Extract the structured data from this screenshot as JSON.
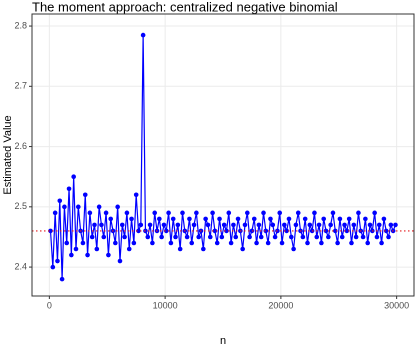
{
  "chart_data": {
    "type": "line",
    "title": "The moment approach: centralized negative binomial",
    "x_label": "n",
    "y_label": "Estimated Value",
    "xlim": [
      -1500,
      31500
    ],
    "xticks": [
      0,
      10000,
      20000,
      30000
    ],
    "ylim": [
      2.352,
      2.82
    ],
    "yticks": [
      2.4,
      2.5,
      2.6,
      2.7,
      2.8
    ],
    "grid": true,
    "reference_line": {
      "value": 2.46,
      "color": "#e41a1c"
    },
    "x": [
      100,
      300,
      500,
      700,
      900,
      1100,
      1300,
      1500,
      1700,
      1900,
      2100,
      2300,
      2500,
      2700,
      2900,
      3100,
      3300,
      3500,
      3700,
      3900,
      4100,
      4300,
      4500,
      4700,
      4900,
      5100,
      5300,
      5500,
      5700,
      5900,
      6100,
      6300,
      6500,
      6700,
      6900,
      7100,
      7300,
      7500,
      7700,
      7900,
      8100,
      8300,
      8500,
      8700,
      8900,
      9100,
      9300,
      9500,
      9700,
      9900,
      10100,
      10300,
      10500,
      10700,
      10900,
      11100,
      11300,
      11500,
      11700,
      11900,
      12100,
      12300,
      12500,
      12700,
      12900,
      13100,
      13300,
      13500,
      13700,
      13900,
      14100,
      14300,
      14500,
      14700,
      14900,
      15100,
      15300,
      15500,
      15700,
      15900,
      16100,
      16300,
      16500,
      16700,
      16900,
      17100,
      17300,
      17500,
      17700,
      17900,
      18100,
      18300,
      18500,
      18700,
      18900,
      19100,
      19300,
      19500,
      19700,
      19900,
      20100,
      20300,
      20500,
      20700,
      20900,
      21100,
      21300,
      21500,
      21700,
      21900,
      22100,
      22300,
      22500,
      22700,
      22900,
      23100,
      23300,
      23500,
      23700,
      23900,
      24100,
      24300,
      24500,
      24700,
      24900,
      25100,
      25300,
      25500,
      25700,
      25900,
      26100,
      26300,
      26500,
      26700,
      26900,
      27100,
      27300,
      27500,
      27700,
      27900,
      28100,
      28300,
      28500,
      28700,
      28900,
      29100,
      29300,
      29500,
      29700,
      29900
    ],
    "series": [
      {
        "color": "#0000ff",
        "values": [
          2.46,
          2.4,
          2.49,
          2.41,
          2.51,
          2.38,
          2.5,
          2.44,
          2.53,
          2.42,
          2.55,
          2.43,
          2.5,
          2.46,
          2.44,
          2.52,
          2.42,
          2.49,
          2.45,
          2.47,
          2.43,
          2.5,
          2.47,
          2.45,
          2.49,
          2.42,
          2.48,
          2.46,
          2.44,
          2.5,
          2.41,
          2.47,
          2.45,
          2.49,
          2.43,
          2.48,
          2.44,
          2.52,
          2.46,
          2.47,
          2.785,
          2.46,
          2.45,
          2.47,
          2.44,
          2.49,
          2.46,
          2.48,
          2.45,
          2.47,
          2.46,
          2.49,
          2.44,
          2.48,
          2.45,
          2.47,
          2.43,
          2.49,
          2.46,
          2.45,
          2.48,
          2.44,
          2.47,
          2.49,
          2.45,
          2.46,
          2.43,
          2.48,
          2.47,
          2.45,
          2.49,
          2.46,
          2.44,
          2.48,
          2.45,
          2.47,
          2.46,
          2.49,
          2.44,
          2.47,
          2.45,
          2.48,
          2.46,
          2.43,
          2.47,
          2.49,
          2.45,
          2.46,
          2.48,
          2.44,
          2.47,
          2.45,
          2.49,
          2.46,
          2.44,
          2.48,
          2.47,
          2.45,
          2.46,
          2.49,
          2.44,
          2.47,
          2.46,
          2.48,
          2.45,
          2.43,
          2.47,
          2.49,
          2.46,
          2.45,
          2.48,
          2.44,
          2.47,
          2.46,
          2.49,
          2.45,
          2.47,
          2.44,
          2.48,
          2.46,
          2.45,
          2.47,
          2.49,
          2.46,
          2.44,
          2.48,
          2.45,
          2.47,
          2.46,
          2.48,
          2.44,
          2.47,
          2.45,
          2.49,
          2.46,
          2.45,
          2.48,
          2.44,
          2.47,
          2.46,
          2.49,
          2.45,
          2.47,
          2.44,
          2.48,
          2.46,
          2.45,
          2.47,
          2.46,
          2.47
        ]
      }
    ]
  }
}
